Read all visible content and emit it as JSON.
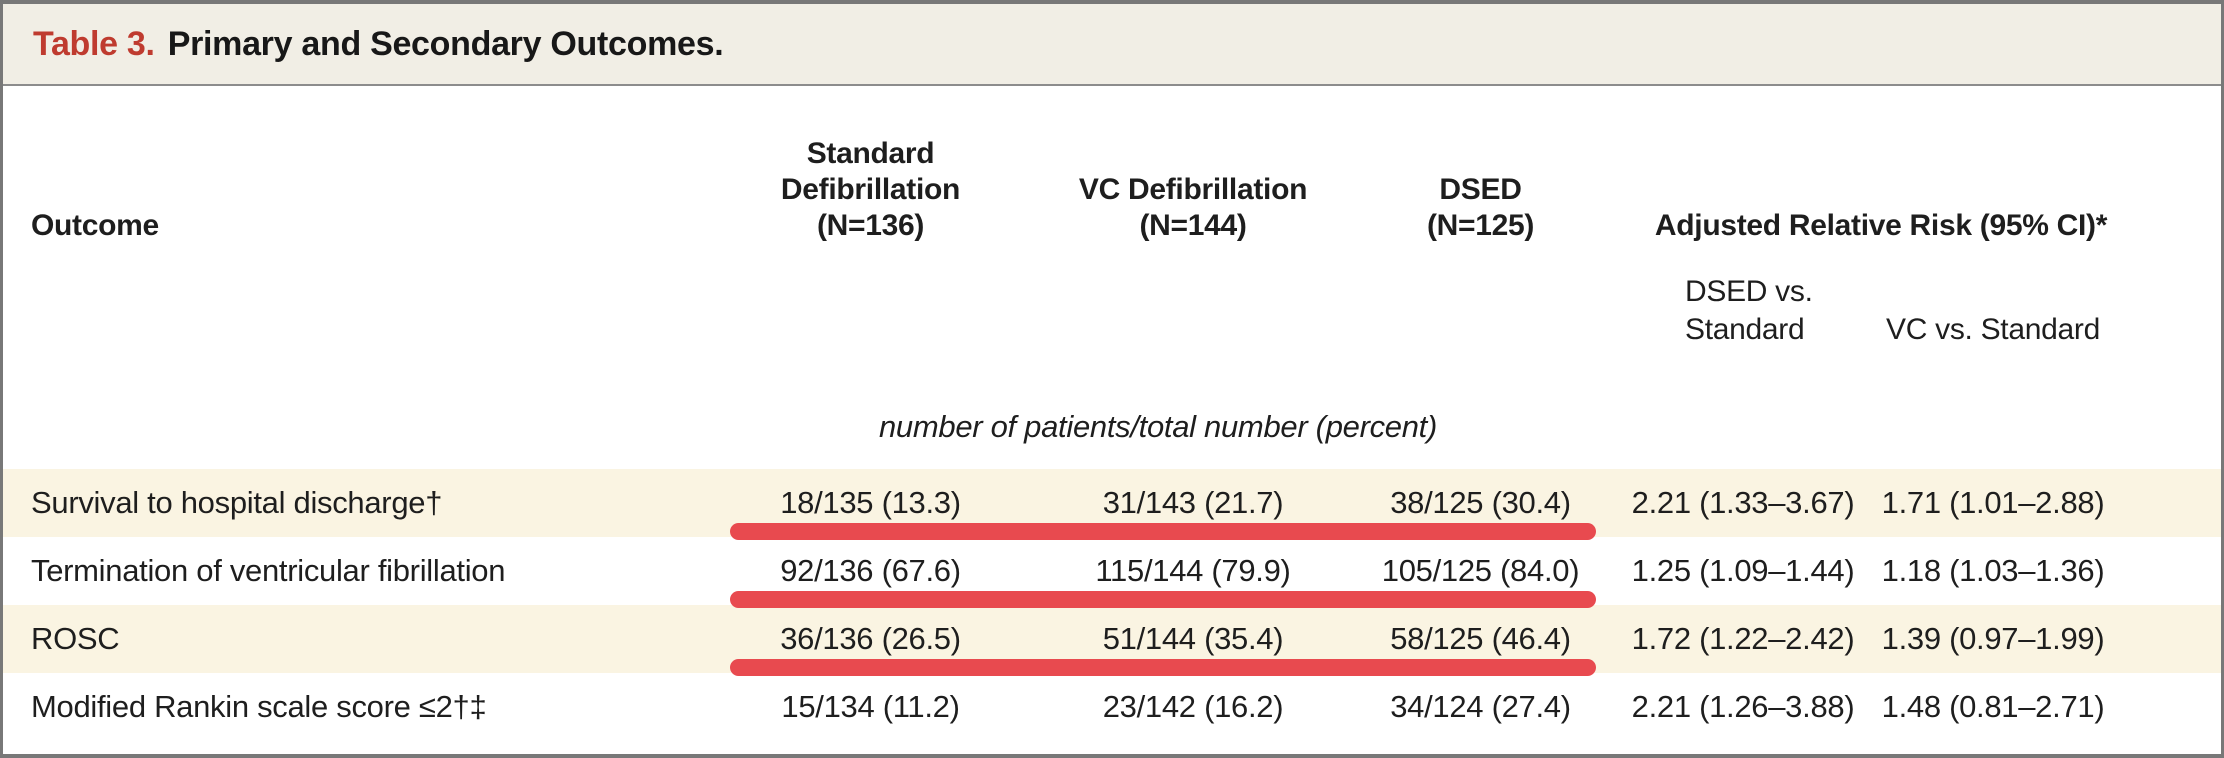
{
  "title": {
    "label": "Table 3.",
    "text": "Primary and Secondary Outcomes."
  },
  "columns": {
    "outcome": "Outcome",
    "standard": [
      "Standard",
      "Defibrillation",
      "(N=136)"
    ],
    "vc": [
      "VC Defibrillation",
      "(N=144)"
    ],
    "dsed": [
      "DSED",
      "(N=125)"
    ],
    "adjusted_rr": "Adjusted Relative Risk (95% CI)*",
    "sub_dsed": [
      "DSED vs.",
      "Standard"
    ],
    "sub_vc": "VC vs. Standard"
  },
  "units_note": "number of patients/total number (percent)",
  "rows": [
    {
      "outcome": "Survival to hospital discharge†",
      "standard": "18/135 (13.3)",
      "vc": "31/143 (21.7)",
      "dsed": "38/125 (30.4)",
      "rr_dsed": "2.21 (1.33–3.67)",
      "rr_vc": "1.71 (1.01–2.88)",
      "red_underline": true
    },
    {
      "outcome": "Termination of ventricular fibrillation",
      "standard": "92/136 (67.6)",
      "vc": "115/144 (79.9)",
      "dsed": "105/125 (84.0)",
      "rr_dsed": "1.25 (1.09–1.44)",
      "rr_vc": "1.18 (1.03–1.36)",
      "red_underline": true
    },
    {
      "outcome": "ROSC",
      "standard": "36/136 (26.5)",
      "vc": "51/144 (35.4)",
      "dsed": "58/125 (46.4)",
      "rr_dsed": "1.72 (1.22–2.42)",
      "rr_vc": "1.39 (0.97–1.99)",
      "red_underline": true
    },
    {
      "outcome": "Modified Rankin scale score ≤2†‡",
      "standard": "15/134 (11.2)",
      "vc": "23/142 (16.2)",
      "dsed": "34/124 (27.4)",
      "rr_dsed": "2.21 (1.26–3.88)",
      "rr_vc": "1.48 (0.81–2.71)",
      "red_underline": false
    }
  ],
  "colors": {
    "accent_red": "#bf3b2f",
    "marker_red": "#e84a4f",
    "row_beige": "#faf4e2",
    "header_beige": "#f1eee5",
    "border_gray": "#787878"
  }
}
